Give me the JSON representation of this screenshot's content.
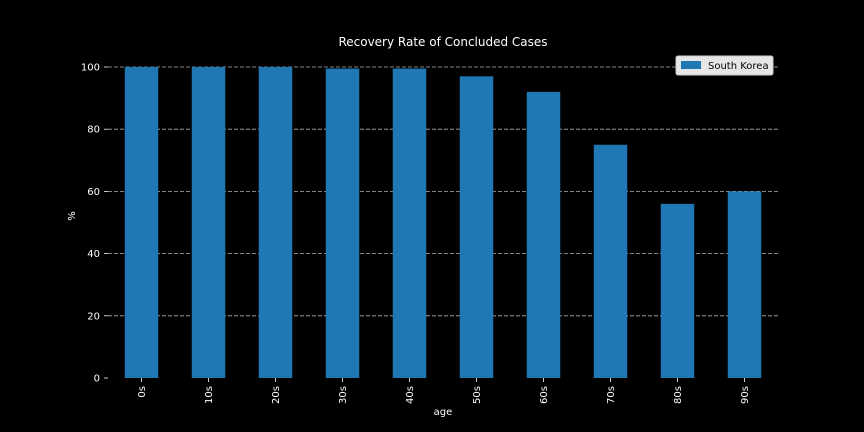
{
  "chart_data": {
    "type": "bar",
    "title": "Recovery Rate of Concluded Cases",
    "xlabel": "age",
    "ylabel": "%",
    "categories": [
      "0s",
      "10s",
      "20s",
      "30s",
      "40s",
      "50s",
      "60s",
      "70s",
      "80s",
      "90s"
    ],
    "series": [
      {
        "name": "South Korea",
        "color": "#1f77b4",
        "values": [
          100,
          100,
          100,
          99.5,
          99.5,
          97,
          92,
          75,
          56,
          60
        ]
      }
    ],
    "ylim": [
      0,
      100
    ],
    "yticks": [
      0,
      20,
      40,
      60,
      80,
      100
    ],
    "grid": "y-dashed",
    "legend": "top-right",
    "colors": {
      "background": "#000000",
      "text": "#ffffff",
      "grid": "#b0b0b0"
    }
  }
}
